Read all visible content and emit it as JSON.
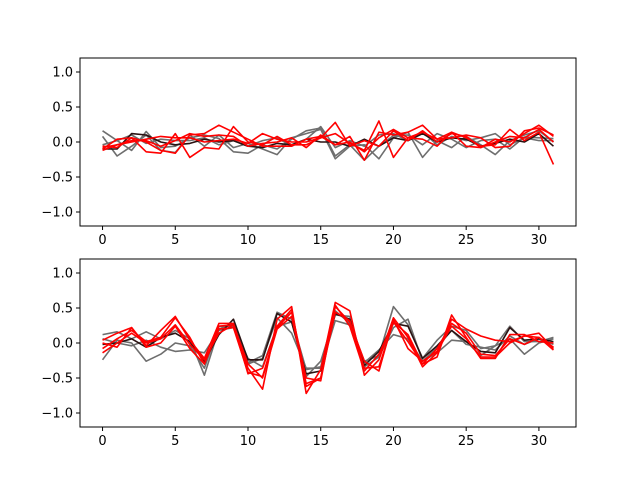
{
  "chart_data": [
    {
      "type": "line",
      "xlim": [
        -1.55,
        32.55
      ],
      "ylim": [
        -1.2,
        1.2
      ],
      "xticks": [
        0,
        5,
        10,
        15,
        20,
        25,
        30
      ],
      "yticks": [
        -1.0,
        -0.5,
        0.0,
        0.5,
        1.0
      ],
      "xtick_labels": [
        "0",
        "5",
        "10",
        "15",
        "20",
        "25",
        "30"
      ],
      "ytick_labels": [
        "−1.0",
        "−0.5",
        "0.0",
        "0.5",
        "1.0"
      ],
      "colors": {
        "gray": "#6e6e6e",
        "dark": "#2a1212",
        "red": "#ff0000"
      },
      "x": [
        0,
        1,
        2,
        3,
        4,
        5,
        6,
        7,
        8,
        9,
        10,
        11,
        12,
        13,
        14,
        15,
        16,
        17,
        18,
        19,
        20,
        21,
        22,
        23,
        24,
        25,
        26,
        27,
        28,
        29,
        30,
        31
      ],
      "series": [
        {
          "color": "gray",
          "values": [
            0.16,
            0.02,
            -0.12,
            0.15,
            -0.08,
            -0.06,
            0.06,
            0.1,
            0.05,
            -0.14,
            -0.16,
            -0.04,
            -0.1,
            0.04,
            0.16,
            0.2,
            -0.2,
            -0.04,
            -0.26,
            -0.06,
            0.09,
            0.1,
            -0.04,
            0.12,
            0.04,
            -0.08,
            0.02,
            0.04,
            -0.1,
            0.07,
            0.06,
            0.05
          ]
        },
        {
          "color": "gray",
          "values": [
            0.08,
            -0.2,
            -0.06,
            0.1,
            -0.12,
            -0.15,
            0.1,
            -0.06,
            0.1,
            -0.08,
            -0.02,
            -0.1,
            -0.18,
            0.06,
            0.12,
            0.18,
            -0.24,
            -0.06,
            -0.04,
            -0.24,
            0.06,
            0.14,
            -0.22,
            0.02,
            -0.08,
            0.08,
            -0.04,
            -0.18,
            0.02,
            0.1,
            0.16,
            0.0
          ]
        },
        {
          "color": "gray",
          "values": [
            -0.04,
            0.02,
            0.1,
            -0.02,
            0.04,
            0.02,
            0.02,
            0.06,
            -0.04,
            0.02,
            -0.06,
            0.02,
            0.06,
            -0.06,
            0.04,
            0.22,
            -0.08,
            0.02,
            -0.06,
            0.1,
            0.12,
            0.02,
            0.14,
            -0.04,
            0.08,
            0.02,
            0.06,
            0.12,
            -0.04,
            0.06,
            0.02,
            0.02
          ]
        },
        {
          "color": "dark",
          "values": [
            -0.1,
            -0.1,
            0.12,
            0.1,
            0.0,
            -0.04,
            -0.02,
            0.04,
            0.0,
            0.02,
            -0.06,
            -0.08,
            -0.02,
            -0.04,
            0.04,
            0.0,
            0.0,
            -0.06,
            0.04,
            -0.06,
            0.06,
            0.02,
            0.12,
            0.0,
            0.06,
            0.04,
            -0.06,
            -0.02,
            0.04,
            0.0,
            0.12,
            -0.06
          ]
        },
        {
          "color": "red",
          "values": [
            -0.1,
            0.04,
            0.06,
            -0.14,
            -0.16,
            0.12,
            -0.22,
            -0.08,
            -0.1,
            0.22,
            0.0,
            -0.04,
            0.08,
            -0.04,
            -0.04,
            0.06,
            0.12,
            -0.02,
            -0.12,
            0.3,
            -0.22,
            0.06,
            0.04,
            -0.06,
            0.14,
            0.06,
            -0.06,
            -0.04,
            0.18,
            0.02,
            0.14,
            -0.32
          ]
        },
        {
          "color": "red",
          "values": [
            -0.12,
            -0.04,
            0.02,
            0.02,
            -0.06,
            0.02,
            0.12,
            0.08,
            0.1,
            0.08,
            -0.06,
            -0.02,
            0.0,
            0.06,
            -0.08,
            0.1,
            -0.04,
            0.0,
            -0.14,
            0.06,
            0.18,
            0.06,
            0.14,
            0.04,
            0.06,
            0.1,
            0.06,
            -0.08,
            -0.06,
            0.16,
            0.2,
            0.1
          ]
        },
        {
          "color": "red",
          "values": [
            -0.06,
            -0.08,
            0.06,
            0.0,
            -0.12,
            -0.16,
            0.1,
            0.12,
            0.24,
            0.14,
            0.04,
            -0.06,
            -0.06,
            -0.06,
            0.04,
            0.08,
            -0.04,
            0.08,
            -0.26,
            0.14,
            0.1,
            0.14,
            0.24,
            0.04,
            0.14,
            -0.06,
            -0.08,
            0.04,
            0.0,
            0.12,
            0.24,
            0.08
          ]
        },
        {
          "color": "red",
          "values": [
            -0.08,
            -0.04,
            0.0,
            0.04,
            0.08,
            0.06,
            0.06,
            0.0,
            0.02,
            0.04,
            -0.02,
            0.12,
            0.04,
            0.0,
            0.0,
            0.06,
            0.28,
            -0.06,
            0.02,
            -0.06,
            0.16,
            0.02,
            0.16,
            0.0,
            0.12,
            0.08,
            -0.08,
            0.0,
            0.08,
            0.06,
            0.18,
            0.0
          ]
        }
      ]
    },
    {
      "type": "line",
      "xlim": [
        -1.55,
        32.55
      ],
      "ylim": [
        -1.2,
        1.2
      ],
      "xticks": [
        0,
        5,
        10,
        15,
        20,
        25,
        30
      ],
      "yticks": [
        -1.0,
        -0.5,
        0.0,
        0.5,
        1.0
      ],
      "xtick_labels": [
        "0",
        "5",
        "10",
        "15",
        "20",
        "25",
        "30"
      ],
      "ytick_labels": [
        "−1.0",
        "−0.5",
        "0.0",
        "0.5",
        "1.0"
      ],
      "colors": {
        "gray": "#6e6e6e",
        "dark": "#2a1212",
        "red": "#ff0000"
      },
      "x": [
        0,
        1,
        2,
        3,
        4,
        5,
        6,
        7,
        8,
        9,
        10,
        11,
        12,
        13,
        14,
        15,
        16,
        17,
        18,
        19,
        20,
        21,
        22,
        23,
        24,
        25,
        26,
        27,
        28,
        29,
        30,
        31
      ],
      "series": [
        {
          "color": "gray",
          "values": [
            0.12,
            0.16,
            0.06,
            0.16,
            0.06,
            0.18,
            0.06,
            -0.46,
            0.2,
            0.28,
            -0.28,
            -0.18,
            0.44,
            0.34,
            -0.38,
            -0.34,
            0.46,
            0.28,
            -0.26,
            -0.18,
            0.52,
            0.26,
            -0.22,
            0.04,
            0.24,
            0.18,
            -0.08,
            -0.04,
            0.24,
            0.02,
            0.02,
            0.08
          ]
        },
        {
          "color": "gray",
          "values": [
            -0.24,
            0.04,
            0.0,
            -0.26,
            -0.16,
            0.0,
            -0.04,
            -0.36,
            0.24,
            0.24,
            -0.22,
            -0.34,
            0.24,
            0.3,
            -0.48,
            -0.26,
            0.4,
            0.38,
            -0.34,
            -0.2,
            0.22,
            0.34,
            -0.26,
            -0.14,
            0.04,
            0.02,
            -0.18,
            -0.04,
            0.06,
            -0.16,
            0.0,
            0.06
          ]
        },
        {
          "color": "gray",
          "values": [
            0.06,
            0.0,
            -0.04,
            0.04,
            -0.06,
            -0.12,
            -0.1,
            -0.14,
            0.18,
            0.22,
            -0.3,
            -0.22,
            0.36,
            0.14,
            -0.36,
            -0.36,
            0.32,
            0.26,
            -0.28,
            -0.1,
            0.12,
            0.06,
            -0.26,
            -0.06,
            0.18,
            -0.02,
            -0.06,
            -0.1,
            0.1,
            -0.02,
            0.06,
            -0.02
          ]
        },
        {
          "color": "dark",
          "values": [
            -0.02,
            0.0,
            0.06,
            -0.06,
            0.08,
            0.14,
            0.02,
            -0.26,
            0.12,
            0.34,
            -0.24,
            -0.24,
            0.42,
            0.3,
            -0.44,
            -0.4,
            0.42,
            0.34,
            -0.32,
            -0.12,
            0.28,
            0.24,
            -0.22,
            -0.04,
            0.18,
            0.02,
            -0.12,
            -0.14,
            0.22,
            0.04,
            0.06,
            0.02
          ]
        },
        {
          "color": "red",
          "values": [
            0.04,
            0.14,
            0.22,
            -0.04,
            0.18,
            0.38,
            0.04,
            -0.22,
            0.28,
            0.28,
            -0.36,
            -0.66,
            0.34,
            0.52,
            -0.72,
            -0.38,
            0.58,
            0.46,
            -0.46,
            -0.24,
            0.36,
            0.08,
            -0.34,
            -0.14,
            0.34,
            0.2,
            0.1,
            0.04,
            0.02,
            0.1,
            0.14,
            -0.08
          ]
        },
        {
          "color": "red",
          "values": [
            -0.08,
            0.06,
            0.18,
            0.02,
            0.08,
            0.36,
            0.08,
            -0.3,
            0.24,
            0.26,
            -0.44,
            -0.36,
            0.24,
            0.48,
            -0.62,
            -0.5,
            0.44,
            0.32,
            -0.36,
            -0.34,
            0.3,
            0.12,
            -0.3,
            -0.2,
            0.4,
            0.08,
            -0.22,
            -0.22,
            0.12,
            0.12,
            0.02,
            0.0
          ]
        },
        {
          "color": "red",
          "values": [
            -0.14,
            0.0,
            0.14,
            0.0,
            0.06,
            0.26,
            -0.02,
            -0.24,
            0.14,
            0.26,
            -0.3,
            -0.5,
            0.2,
            0.38,
            -0.58,
            -0.5,
            0.54,
            0.24,
            -0.4,
            -0.16,
            0.3,
            0.02,
            -0.3,
            -0.08,
            0.28,
            0.14,
            -0.16,
            -0.18,
            0.06,
            -0.02,
            0.08,
            -0.06
          ]
        },
        {
          "color": "red",
          "values": [
            0.0,
            -0.06,
            0.22,
            -0.06,
            0.0,
            0.24,
            -0.08,
            -0.3,
            0.2,
            0.22,
            -0.42,
            -0.48,
            0.22,
            0.44,
            -0.5,
            -0.54,
            0.52,
            0.3,
            -0.26,
            -0.4,
            0.34,
            -0.08,
            -0.26,
            -0.12,
            0.24,
            0.06,
            -0.2,
            -0.2,
            0.0,
            0.1,
            0.08,
            -0.1
          ]
        }
      ]
    }
  ]
}
